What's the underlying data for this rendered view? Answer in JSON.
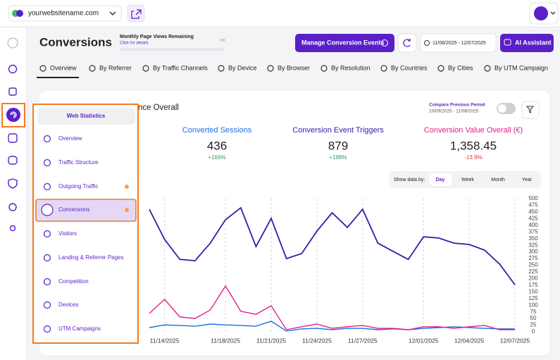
{
  "header": {
    "site": "yourwebsitename.com"
  },
  "page": {
    "title": "Conversions",
    "quota_title": "Monthly Page Views Remaining",
    "quota_link": "Click for details",
    "quota_value": "∞",
    "manage_button": "Manage Conversion Events",
    "date_range": "11/08/2025 - 12/07/2025",
    "ai_button": "AI Assistant"
  },
  "tabs": [
    "Overview",
    "By Referrer",
    "By Traffic Channels",
    "By Device",
    "By Browser",
    "By Resolution",
    "By Countries",
    "By Cities",
    "By UTM Campaign"
  ],
  "card": {
    "title": "Conversion Performance Overall",
    "compare_label": "Compare Previous Period",
    "compare_range": "10/09/2025 - 11/08/2025",
    "show_by_label": "Show data by:",
    "show_by_options": [
      "Day",
      "Week",
      "Month",
      "Year"
    ]
  },
  "stats": [
    {
      "total": "436",
      "change": "+166%"
    },
    {
      "total": "879",
      "change": "+198%"
    },
    {
      "total": "1,358.45",
      "change": "-13.9%"
    }
  ],
  "menu": {
    "title": "Web Statistics",
    "items": [
      "Overview",
      "Traffic Structure",
      "Outgoing Traffic",
      "Conversions",
      "Visitors",
      "Landing & Referrer Pages",
      "Competition",
      "Devices",
      "UTM Campaigns"
    ]
  },
  "chart_data": {
    "type": "line",
    "categories": [
      null,
      "11/14/2025",
      null,
      null,
      null,
      "11/18/2025",
      null,
      null,
      "11/21/2025",
      null,
      null,
      "11/24/2025",
      null,
      null,
      "11/27/2025",
      null,
      null,
      null,
      "12/01/2025",
      null,
      null,
      "12/04/2025",
      null,
      null,
      "12/07/2025"
    ],
    "series": [
      {
        "name": "Converted Sessions",
        "color": "#1a6fe0",
        "values": [
          16,
          26,
          24,
          21,
          29,
          26,
          24,
          21,
          40,
          3,
          11,
          13,
          8,
          13,
          13,
          8,
          11,
          8,
          13,
          16,
          19,
          16,
          13,
          11,
          11
        ]
      },
      {
        "name": "Conversion Event Triggers",
        "color": "#3d17a8",
        "values": [
          460,
          347,
          272,
          267,
          333,
          421,
          466,
          320,
          426,
          275,
          294,
          378,
          447,
          392,
          460,
          333,
          302,
          272,
          357,
          352,
          333,
          328,
          307,
          254,
          177
        ]
      },
      {
        "name": "Conversion Value Overall (€)",
        "color": "#e0218a",
        "values": [
          69,
          122,
          56,
          50,
          82,
          172,
          77,
          66,
          98,
          8,
          19,
          29,
          13,
          19,
          24,
          13,
          13,
          8,
          19,
          19,
          13,
          19,
          24,
          8,
          8
        ]
      }
    ],
    "ylim": [
      0,
      500
    ],
    "yticks": [
      0,
      25,
      50,
      75,
      100,
      125,
      150,
      175,
      200,
      225,
      250,
      275,
      300,
      325,
      350,
      375,
      400,
      425,
      450,
      475,
      500
    ],
    "grid": false
  }
}
